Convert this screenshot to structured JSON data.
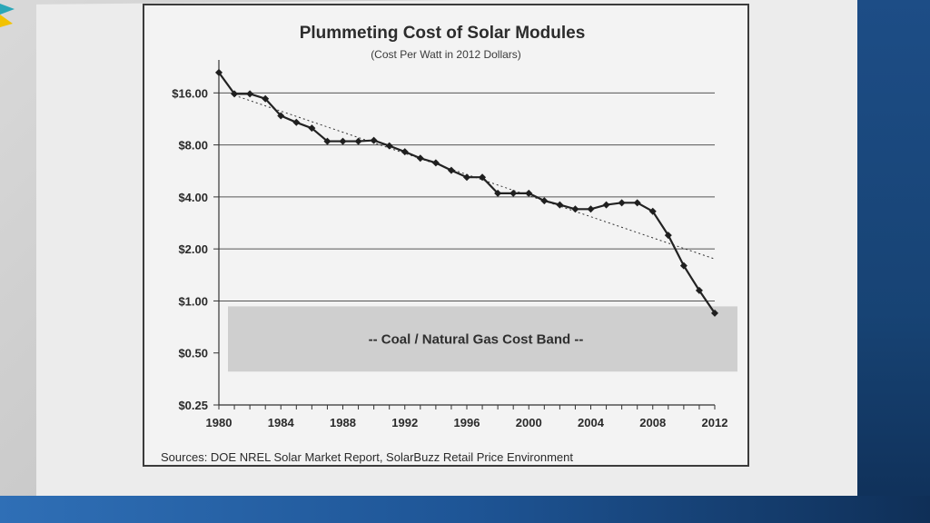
{
  "chart_data": {
    "type": "line",
    "title": "Plummeting Cost of Solar Modules",
    "subtitle": "(Cost Per Watt in 2012 Dollars)",
    "xlabel": "",
    "ylabel": "",
    "y_scale": "log2",
    "ylim": [
      0.25,
      22
    ],
    "xlim": [
      1980,
      2012
    ],
    "y_ticks": [
      16,
      8,
      4,
      2,
      1,
      0.5,
      0.25
    ],
    "y_tick_labels": [
      "$16.00",
      "$8.00",
      "$4.00",
      "$2.00",
      "$1.00",
      "$0.50",
      "$0.25"
    ],
    "x_ticks": [
      1980,
      1984,
      1988,
      1992,
      1996,
      2000,
      2004,
      2008,
      2012
    ],
    "x_tick_labels": [
      "1980",
      "1984",
      "1988",
      "1992",
      "1996",
      "2000",
      "2004",
      "2008",
      "2012"
    ],
    "grid": true,
    "series": [
      {
        "name": "Module cost per watt",
        "x": [
          1980,
          1981,
          1982,
          1983,
          1984,
          1985,
          1986,
          1987,
          1988,
          1989,
          1990,
          1991,
          1992,
          1993,
          1994,
          1995,
          1996,
          1997,
          1998,
          1999,
          2000,
          2001,
          2002,
          2003,
          2004,
          2005,
          2006,
          2007,
          2008,
          2009,
          2010,
          2011,
          2012
        ],
        "values": [
          21.0,
          15.8,
          15.8,
          14.8,
          11.8,
          10.8,
          10.0,
          8.4,
          8.4,
          8.4,
          8.5,
          7.9,
          7.3,
          6.7,
          6.3,
          5.7,
          5.2,
          5.2,
          4.2,
          4.2,
          4.2,
          3.8,
          3.6,
          3.4,
          3.4,
          3.6,
          3.7,
          3.7,
          3.3,
          2.4,
          1.6,
          1.15,
          0.85
        ]
      },
      {
        "name": "Trend",
        "style": "dotted",
        "x": [
          1981,
          2012
        ],
        "values": [
          15.5,
          1.75
        ]
      }
    ],
    "band": {
      "label": "--  Coal / Natural Gas Cost Band  --",
      "range": [
        0.39,
        0.93
      ]
    },
    "source": "Sources:  DOE NREL Solar Market Report, SolarBuzz Retail Price Environment"
  }
}
